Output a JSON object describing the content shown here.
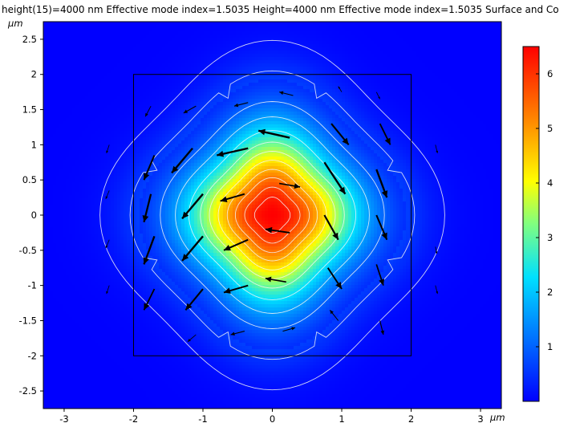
{
  "chart_data": {
    "type": "heatmap",
    "title": "height(15)=4000 nm Effective mode index=1.5035 Height=4000 nm Effective mode index=1.5035 Surface and Co",
    "x_unit": "μm",
    "y_unit": "μm",
    "xlim": [
      -3.3,
      3.3
    ],
    "ylim": [
      -2.75,
      2.75
    ],
    "x_ticks": [
      "-3",
      "-2",
      "-1",
      "0",
      "1",
      "2",
      "3"
    ],
    "y_ticks": [
      "2.5",
      "2",
      "1.5",
      "1",
      "0.5",
      "0",
      "-0.5",
      "-1",
      "-1.5",
      "-2",
      "-2.5"
    ],
    "colorbar": {
      "ticks": [
        "1",
        "2",
        "3",
        "4",
        "5",
        "6"
      ],
      "range": [
        0,
        6.5
      ],
      "colormap": "rainbow"
    },
    "field": {
      "peak_value": 6.5,
      "center": [
        0,
        0
      ],
      "description_shape": "gaussian-like fundamental mode"
    },
    "core_outline": {
      "x": [
        -2,
        2
      ],
      "y": [
        -2,
        2
      ]
    },
    "contour_levels": [
      0.15,
      0.5,
      1.0,
      1.6,
      2.3,
      3.0,
      3.6,
      4.2,
      4.8,
      5.3,
      5.8,
      6.2
    ],
    "arrows": [
      {
        "x": 0.25,
        "y": 1.1,
        "dx": -0.45,
        "dy": 0.1
      },
      {
        "x": -0.35,
        "y": 0.95,
        "dx": -0.45,
        "dy": -0.1
      },
      {
        "x": -1.15,
        "y": 0.95,
        "dx": -0.3,
        "dy": -0.35
      },
      {
        "x": -1.7,
        "y": 0.85,
        "dx": -0.15,
        "dy": -0.35
      },
      {
        "x": 0.75,
        "y": 0.75,
        "dx": 0.3,
        "dy": -0.45
      },
      {
        "x": 0.85,
        "y": 1.3,
        "dx": 0.25,
        "dy": -0.3
      },
      {
        "x": 1.55,
        "y": 1.3,
        "dx": 0.15,
        "dy": -0.3
      },
      {
        "x": 1.5,
        "y": 0.65,
        "dx": 0.15,
        "dy": -0.4
      },
      {
        "x": -0.4,
        "y": 0.3,
        "dx": -0.35,
        "dy": -0.1
      },
      {
        "x": 0.1,
        "y": 0.45,
        "dx": 0.3,
        "dy": -0.05
      },
      {
        "x": -1.0,
        "y": 0.3,
        "dx": -0.3,
        "dy": -0.35
      },
      {
        "x": -1.75,
        "y": 0.3,
        "dx": -0.1,
        "dy": -0.4
      },
      {
        "x": 0.75,
        "y": 0.0,
        "dx": 0.2,
        "dy": -0.35
      },
      {
        "x": 1.5,
        "y": 0.0,
        "dx": 0.15,
        "dy": -0.35
      },
      {
        "x": -0.35,
        "y": -0.35,
        "dx": -0.35,
        "dy": -0.15
      },
      {
        "x": 0.25,
        "y": -0.25,
        "dx": -0.35,
        "dy": 0.05
      },
      {
        "x": -1.0,
        "y": -0.3,
        "dx": -0.3,
        "dy": -0.35
      },
      {
        "x": -1.7,
        "y": -0.3,
        "dx": -0.15,
        "dy": -0.4
      },
      {
        "x": 0.8,
        "y": -0.75,
        "dx": 0.2,
        "dy": -0.3
      },
      {
        "x": 1.5,
        "y": -0.7,
        "dx": 0.1,
        "dy": -0.3
      },
      {
        "x": 0.2,
        "y": -0.95,
        "dx": -0.3,
        "dy": 0.05
      },
      {
        "x": -0.35,
        "y": -1.0,
        "dx": -0.35,
        "dy": -0.1
      },
      {
        "x": -1.0,
        "y": -1.05,
        "dx": -0.25,
        "dy": -0.3
      },
      {
        "x": -1.7,
        "y": -1.05,
        "dx": -0.15,
        "dy": -0.3
      },
      {
        "x": 0.95,
        "y": -1.5,
        "dx": -0.12,
        "dy": 0.15
      },
      {
        "x": 1.55,
        "y": -1.5,
        "dx": 0.05,
        "dy": -0.2
      },
      {
        "x": -0.4,
        "y": -1.65,
        "dx": -0.2,
        "dy": -0.05
      },
      {
        "x": 0.15,
        "y": -1.65,
        "dx": 0.18,
        "dy": 0.05
      },
      {
        "x": -1.1,
        "y": -1.7,
        "dx": -0.12,
        "dy": -0.1
      },
      {
        "x": 0.3,
        "y": 1.7,
        "dx": -0.2,
        "dy": 0.05
      },
      {
        "x": -0.35,
        "y": 1.6,
        "dx": -0.2,
        "dy": -0.05
      },
      {
        "x": -1.1,
        "y": 1.55,
        "dx": -0.18,
        "dy": -0.1
      },
      {
        "x": -1.75,
        "y": 1.55,
        "dx": -0.08,
        "dy": -0.15
      },
      {
        "x": 1.0,
        "y": 1.75,
        "dx": -0.05,
        "dy": 0.08
      },
      {
        "x": 1.5,
        "y": 1.75,
        "dx": 0.05,
        "dy": -0.1
      },
      {
        "x": -2.35,
        "y": 0.35,
        "dx": -0.05,
        "dy": -0.12
      },
      {
        "x": -2.35,
        "y": -0.35,
        "dx": -0.05,
        "dy": -0.12
      },
      {
        "x": 2.35,
        "y": 1.0,
        "dx": 0.03,
        "dy": -0.12
      },
      {
        "x": 2.35,
        "y": -0.45,
        "dx": 0.02,
        "dy": -0.1
      },
      {
        "x": -2.35,
        "y": 1.0,
        "dx": -0.04,
        "dy": -0.12
      },
      {
        "x": -2.35,
        "y": -1.0,
        "dx": -0.04,
        "dy": -0.12
      },
      {
        "x": 2.35,
        "y": -1.0,
        "dx": 0.03,
        "dy": -0.12
      }
    ]
  }
}
